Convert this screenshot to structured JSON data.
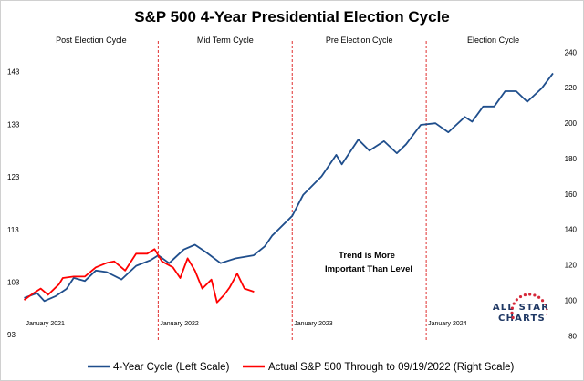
{
  "chart_data": {
    "type": "line",
    "title": "S&P 500 4-Year Presidential Election Cycle",
    "x_type": "date",
    "xlim": [
      "2021-01-01",
      "2024-12-31"
    ],
    "x_tick_labels": [
      {
        "date": "2021-01-01",
        "label": "January 2021"
      },
      {
        "date": "2022-01-01",
        "label": "January 2022"
      },
      {
        "date": "2023-01-01",
        "label": "January 2023"
      },
      {
        "date": "2024-01-01",
        "label": "January 2024"
      }
    ],
    "y_left": {
      "lim": [
        93,
        148
      ],
      "ticks": [
        93,
        103,
        113,
        123,
        133,
        143
      ]
    },
    "y_right": {
      "lim": [
        80,
        240
      ],
      "ticks": [
        80,
        100,
        120,
        140,
        160,
        180,
        200,
        220,
        240
      ]
    },
    "grid": false,
    "legend_position": "bottom",
    "vertical_dividers": [
      "2022-01-01",
      "2023-01-01",
      "2024-01-01"
    ],
    "divider_color": "#e03030",
    "cycle_labels": [
      "Post Election Cycle",
      "Mid Term Cycle",
      "Pre Election Cycle",
      "Election Cycle"
    ],
    "annotation": [
      "Trend is More",
      "Important Than Level"
    ],
    "series": [
      {
        "name": "4-Year Cycle (Left Scale)",
        "axis": "left",
        "color": "#1f4e8c",
        "x": [
          "2021-01-01",
          "2021-02-05",
          "2021-02-25",
          "2021-03-27",
          "2021-04-26",
          "2021-05-16",
          "2021-06-15",
          "2021-07-15",
          "2021-08-14",
          "2021-09-23",
          "2021-11-02",
          "2021-12-12",
          "2022-01-01",
          "2022-01-31",
          "2022-03-12",
          "2022-04-11",
          "2022-05-11",
          "2022-06-20",
          "2022-07-30",
          "2022-09-18",
          "2022-10-18",
          "2022-11-07",
          "2023-01-01",
          "2023-01-31",
          "2023-03-22",
          "2023-05-01",
          "2023-05-16",
          "2023-06-30",
          "2023-07-30",
          "2023-09-08",
          "2023-10-13",
          "2023-11-07",
          "2023-12-17",
          "2024-01-26",
          "2024-03-01",
          "2024-04-15",
          "2024-05-05",
          "2024-06-04",
          "2024-07-04",
          "2024-08-03",
          "2024-09-02",
          "2024-10-02",
          "2024-11-11",
          "2024-12-11"
        ],
        "y": [
          100.0,
          100.9,
          99.4,
          100.3,
          101.7,
          103.8,
          103.2,
          105.2,
          104.9,
          103.5,
          106.1,
          107.2,
          108.1,
          106.6,
          109.2,
          110.1,
          108.7,
          106.6,
          107.5,
          108.1,
          109.8,
          111.8,
          115.6,
          119.6,
          123.1,
          127.2,
          125.4,
          130.1,
          128.0,
          129.8,
          127.5,
          129.2,
          132.9,
          133.2,
          131.5,
          134.4,
          133.5,
          136.4,
          136.4,
          139.3,
          139.3,
          137.3,
          139.9,
          142.7
        ]
      },
      {
        "name": "Actual S&P 500 Through to 09/19/2022 (Right Scale)",
        "axis": "right",
        "color": "#ff0000",
        "x": [
          "2021-01-01",
          "2021-01-26",
          "2021-02-15",
          "2021-03-07",
          "2021-04-06",
          "2021-04-16",
          "2021-05-16",
          "2021-06-15",
          "2021-07-15",
          "2021-08-14",
          "2021-09-03",
          "2021-10-03",
          "2021-11-02",
          "2021-12-02",
          "2021-12-22",
          "2022-01-11",
          "2022-02-10",
          "2022-03-02",
          "2022-03-22",
          "2022-04-11",
          "2022-05-01",
          "2022-05-26",
          "2022-06-10",
          "2022-06-30",
          "2022-07-15",
          "2022-08-04",
          "2022-08-24",
          "2022-09-19"
        ],
        "y": [
          100.2,
          104.0,
          106.6,
          103.1,
          109.1,
          112.6,
          113.4,
          113.4,
          118.6,
          121.1,
          122.0,
          116.8,
          126.3,
          126.3,
          128.9,
          122.0,
          118.6,
          112.6,
          123.7,
          116.8,
          106.6,
          111.7,
          98.8,
          103.1,
          107.4,
          115.1,
          106.6,
          104.8
        ]
      }
    ]
  },
  "logo": {
    "text_line1": "ALL STAR",
    "text_line2": "CHARTS",
    "color": "#1f3864",
    "star_color": "#d62839"
  }
}
